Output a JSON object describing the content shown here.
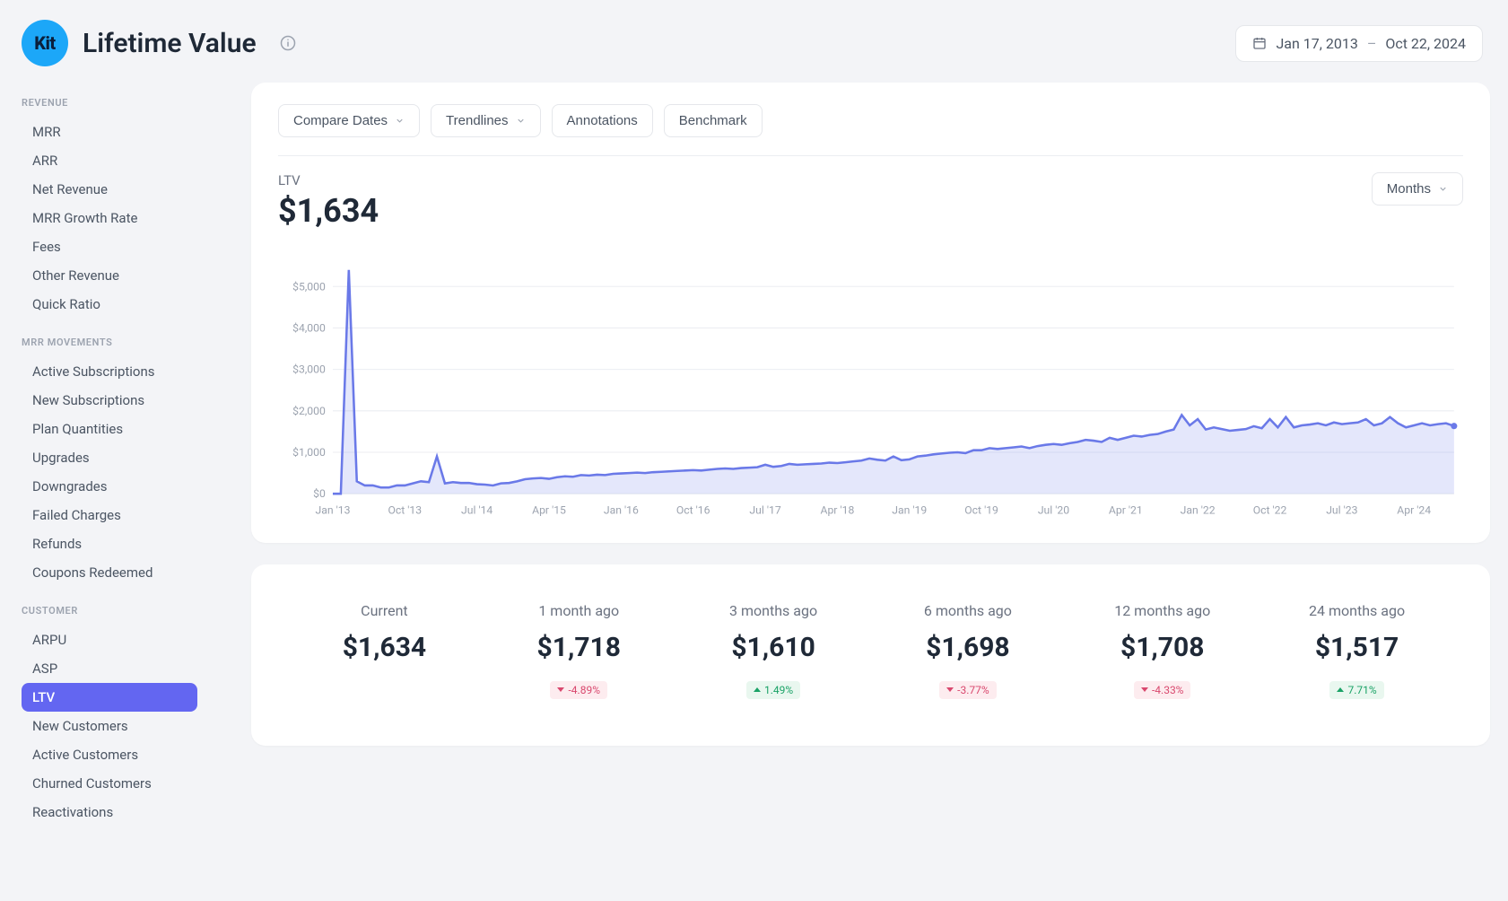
{
  "header": {
    "logo_text": "Kit",
    "title": "Lifetime Value",
    "date_start": "Jan 17, 2013",
    "date_end": "Oct 22, 2024",
    "date_sep": "–"
  },
  "sidebar": {
    "sections": [
      {
        "heading": "REVENUE",
        "items": [
          "MRR",
          "ARR",
          "Net Revenue",
          "MRR Growth Rate",
          "Fees",
          "Other Revenue",
          "Quick Ratio"
        ]
      },
      {
        "heading": "MRR MOVEMENTS",
        "items": [
          "Active Subscriptions",
          "New Subscriptions",
          "Plan Quantities",
          "Upgrades",
          "Downgrades",
          "Failed Charges",
          "Refunds",
          "Coupons Redeemed"
        ]
      },
      {
        "heading": "CUSTOMER",
        "items": [
          "ARPU",
          "ASP",
          "LTV",
          "New Customers",
          "Active Customers",
          "Churned Customers",
          "Reactivations"
        ]
      }
    ],
    "active": "LTV"
  },
  "toolbar": {
    "compare": "Compare Dates",
    "trendlines": "Trendlines",
    "annotations": "Annotations",
    "benchmark": "Benchmark",
    "granularity": "Months"
  },
  "metric": {
    "label": "LTV",
    "value": "$1,634"
  },
  "chart": {
    "type": "area",
    "line_color": "#6a79e8",
    "area_color": "#6a79e8",
    "grid_color": "#eceef2",
    "label_color": "#9ca3af",
    "background": "#ffffff",
    "ylim": [
      0,
      5500
    ],
    "yticks": [
      0,
      1000,
      2000,
      3000,
      4000,
      5000
    ],
    "ytick_labels": [
      "$0",
      "$1,000",
      "$2,000",
      "$3,000",
      "$4,000",
      "$5,000"
    ],
    "x_n": 141,
    "xticks": [
      0,
      9,
      18,
      27,
      36,
      45,
      54,
      63,
      72,
      81,
      90,
      99,
      108,
      117,
      126,
      135
    ],
    "xtick_labels": [
      "Jan '13",
      "Oct '13",
      "Jul '14",
      "Apr '15",
      "Jan '16",
      "Oct '16",
      "Jul '17",
      "Apr '18",
      "Jan '19",
      "Oct '19",
      "Jul '20",
      "Apr '21",
      "Jan '22",
      "Oct '22",
      "Jul '23",
      "Apr '24"
    ],
    "values": [
      0,
      0,
      5400,
      300,
      200,
      200,
      150,
      150,
      200,
      200,
      250,
      300,
      280,
      900,
      250,
      280,
      260,
      260,
      230,
      220,
      200,
      250,
      260,
      300,
      350,
      370,
      380,
      360,
      400,
      420,
      410,
      450,
      440,
      460,
      450,
      480,
      490,
      500,
      510,
      500,
      520,
      530,
      540,
      550,
      560,
      570,
      560,
      580,
      600,
      610,
      600,
      620,
      630,
      640,
      700,
      650,
      670,
      720,
      700,
      710,
      720,
      730,
      750,
      740,
      760,
      780,
      800,
      850,
      820,
      800,
      900,
      810,
      830,
      900,
      920,
      950,
      970,
      990,
      1000,
      980,
      1050,
      1050,
      1100,
      1080,
      1100,
      1120,
      1140,
      1100,
      1150,
      1180,
      1200,
      1180,
      1220,
      1250,
      1300,
      1280,
      1250,
      1350,
      1300,
      1350,
      1400,
      1380,
      1420,
      1440,
      1500,
      1550,
      1900,
      1650,
      1800,
      1550,
      1600,
      1560,
      1520,
      1540,
      1560,
      1630,
      1580,
      1800,
      1600,
      1850,
      1600,
      1650,
      1670,
      1700,
      1650,
      1720,
      1680,
      1700,
      1720,
      1800,
      1650,
      1700,
      1850,
      1700,
      1600,
      1650,
      1700,
      1650,
      1680,
      1700,
      1634
    ]
  },
  "comparisons": [
    {
      "label": "Current",
      "value": "$1,634",
      "delta": null,
      "dir": null
    },
    {
      "label": "1 month ago",
      "value": "$1,718",
      "delta": "-4.89%",
      "dir": "down"
    },
    {
      "label": "3 months ago",
      "value": "$1,610",
      "delta": "1.49%",
      "dir": "up"
    },
    {
      "label": "6 months ago",
      "value": "$1,698",
      "delta": "-3.77%",
      "dir": "down"
    },
    {
      "label": "12 months ago",
      "value": "$1,708",
      "delta": "-4.33%",
      "dir": "down"
    },
    {
      "label": "24 months ago",
      "value": "$1,517",
      "delta": "7.71%",
      "dir": "up"
    }
  ]
}
